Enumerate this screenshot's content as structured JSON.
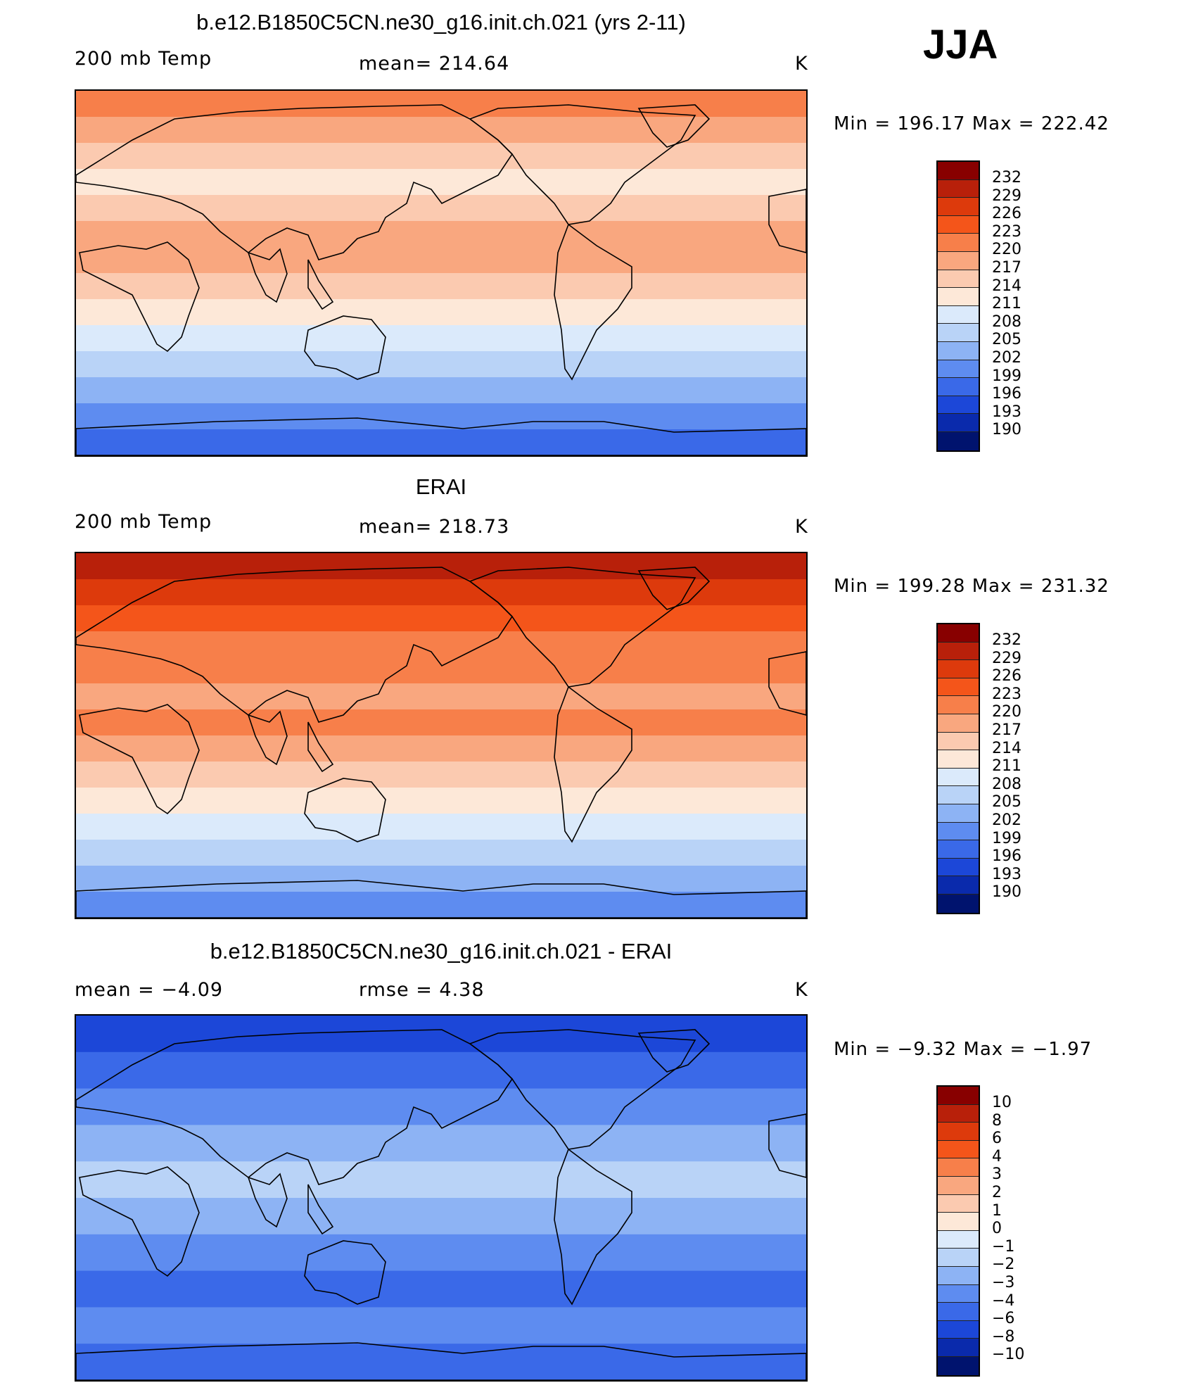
{
  "season": "JJA",
  "colors": {
    "c232": "#880000",
    "c229": "#b8200a",
    "c226": "#dd3a0c",
    "c223": "#f4551a",
    "c220": "#f77f4a",
    "c217": "#f9a77f",
    "c214": "#fbcab0",
    "c211": "#fde8d8",
    "c208": "#dbeafb",
    "c205": "#b9d3f7",
    "c202": "#8db3f4",
    "c199": "#5e8cf0",
    "c196": "#3a69e8",
    "c193": "#1c47d8",
    "c190": "#0a2aac",
    "cmin": "#00136e"
  },
  "panels": [
    {
      "title": "b.e12.B1850C5CN.ne30_g16.init.ch.021 (yrs 2-11)",
      "left_label": "200 mb Temp",
      "center_label": "mean= 214.64",
      "units": "K",
      "min_label": "Min",
      "min_value": "196.17",
      "max_label": "Max",
      "max_value": "222.42",
      "ticks": [
        "232",
        "229",
        "226",
        "223",
        "220",
        "217",
        "214",
        "211",
        "208",
        "205",
        "202",
        "199",
        "196",
        "193",
        "190"
      ],
      "bands": [
        "c220",
        "c217",
        "c214",
        "c211",
        "c214",
        "c217",
        "c217",
        "c214",
        "c211",
        "c208",
        "c205",
        "c202",
        "c199",
        "c196"
      ]
    },
    {
      "title": "ERAI",
      "left_label": "200 mb Temp",
      "center_label": "mean= 218.73",
      "units": "K",
      "min_label": "Min",
      "min_value": "199.28",
      "max_label": "Max",
      "max_value": "231.32",
      "ticks": [
        "232",
        "229",
        "226",
        "223",
        "220",
        "217",
        "214",
        "211",
        "208",
        "205",
        "202",
        "199",
        "196",
        "193",
        "190"
      ],
      "bands": [
        "c229",
        "c226",
        "c223",
        "c220",
        "c220",
        "c217",
        "c220",
        "c217",
        "c214",
        "c211",
        "c208",
        "c205",
        "c202",
        "c199"
      ]
    },
    {
      "title": "b.e12.B1850C5CN.ne30_g16.init.ch.021 - ERAI",
      "left_label": "mean =   −4.09",
      "center_label": "rmse =     4.38",
      "units": "K",
      "min_label": "Min",
      "min_value": "−9.32",
      "max_label": "Max",
      "max_value": "−1.97",
      "ticks": [
        "10",
        "8",
        "6",
        "4",
        "3",
        "2",
        "1",
        "0",
        "−1",
        "−2",
        "−3",
        "−4",
        "−6",
        "−8",
        "−10"
      ],
      "bands": [
        "c193",
        "c196",
        "c199",
        "c202",
        "c205",
        "c202",
        "c199",
        "c196",
        "c199",
        "c196"
      ]
    }
  ]
}
